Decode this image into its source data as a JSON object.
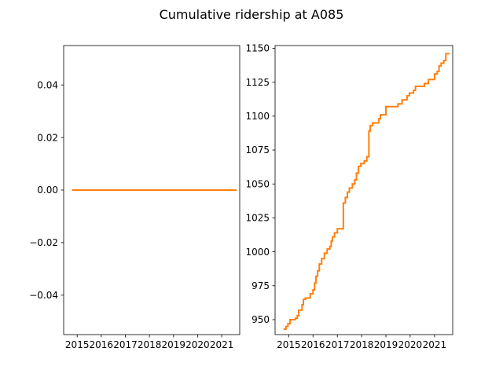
{
  "figure": {
    "suptitle": "Cumulative ridership at A085"
  },
  "chart_data": [
    {
      "type": "line",
      "title": "",
      "xlabel": "",
      "ylabel": "",
      "x_ticks": [
        "2015",
        "2016",
        "2017",
        "2018",
        "2019",
        "2020",
        "2021"
      ],
      "y_ticks": [
        "−0.04",
        "−0.02",
        "0.00",
        "0.02",
        "0.04"
      ],
      "ylim": [
        -0.055,
        0.055
      ],
      "xlim": [
        "2014-06-10",
        "2021-10-01"
      ],
      "grid": false,
      "series": [
        {
          "color": "#ff7f0e",
          "points": [
            [
              "2014-10-15",
              0
            ],
            [
              "2021-08-15",
              0
            ]
          ]
        }
      ]
    },
    {
      "type": "line",
      "title": "",
      "xlabel": "",
      "ylabel": "",
      "x_ticks": [
        "2015",
        "2016",
        "2017",
        "2018",
        "2019",
        "2020",
        "2021"
      ],
      "y_ticks": [
        "950",
        "975",
        "1000",
        "1025",
        "1050",
        "1075",
        "1100",
        "1125",
        "1150"
      ],
      "ylim": [
        939,
        1152
      ],
      "xlim": [
        "2014-06-10",
        "2021-10-01"
      ],
      "grid": false,
      "series": [
        {
          "color": "#ff7f0e",
          "points": [
            [
              "2014-10-15",
              943
            ],
            [
              "2014-11-20",
              943
            ],
            [
              "2014-11-20",
              945
            ],
            [
              "2014-12-20",
              945
            ],
            [
              "2014-12-20",
              947
            ],
            [
              "2015-01-20",
              947
            ],
            [
              "2015-01-20",
              950
            ],
            [
              "2015-04-10",
              950
            ],
            [
              "2015-04-10",
              951
            ],
            [
              "2015-05-10",
              951
            ],
            [
              "2015-05-10",
              953
            ],
            [
              "2015-06-01",
              953
            ],
            [
              "2015-06-01",
              957
            ],
            [
              "2015-07-20",
              957
            ],
            [
              "2015-07-20",
              961
            ],
            [
              "2015-08-10",
              961
            ],
            [
              "2015-08-10",
              965
            ],
            [
              "2015-09-10",
              965
            ],
            [
              "2015-09-10",
              966
            ],
            [
              "2015-11-20",
              966
            ],
            [
              "2015-11-20",
              969
            ],
            [
              "2016-01-01",
              969
            ],
            [
              "2016-01-01",
              972
            ],
            [
              "2016-01-25",
              972
            ],
            [
              "2016-01-25",
              977
            ],
            [
              "2016-02-15",
              977
            ],
            [
              "2016-02-15",
              982
            ],
            [
              "2016-03-10",
              982
            ],
            [
              "2016-03-10",
              986
            ],
            [
              "2016-04-05",
              986
            ],
            [
              "2016-04-05",
              991
            ],
            [
              "2016-05-10",
              991
            ],
            [
              "2016-05-10",
              995
            ],
            [
              "2016-06-20",
              995
            ],
            [
              "2016-06-20",
              999
            ],
            [
              "2016-08-01",
              999
            ],
            [
              "2016-08-01",
              1002
            ],
            [
              "2016-09-10",
              1002
            ],
            [
              "2016-09-10",
              1004
            ],
            [
              "2016-10-01",
              1004
            ],
            [
              "2016-10-01",
              1008
            ],
            [
              "2016-10-20",
              1008
            ],
            [
              "2016-10-20",
              1011
            ],
            [
              "2016-11-20",
              1011
            ],
            [
              "2016-11-20",
              1014
            ],
            [
              "2017-01-01",
              1014
            ],
            [
              "2017-01-01",
              1017
            ],
            [
              "2017-04-01",
              1017
            ],
            [
              "2017-04-01",
              1036
            ],
            [
              "2017-05-01",
              1036
            ],
            [
              "2017-05-01",
              1040
            ],
            [
              "2017-06-01",
              1040
            ],
            [
              "2017-06-01",
              1044
            ],
            [
              "2017-07-01",
              1044
            ],
            [
              "2017-07-01",
              1047
            ],
            [
              "2017-08-15",
              1047
            ],
            [
              "2017-08-15",
              1050
            ],
            [
              "2017-09-20",
              1050
            ],
            [
              "2017-09-20",
              1053
            ],
            [
              "2017-10-15",
              1053
            ],
            [
              "2017-10-15",
              1058
            ],
            [
              "2017-11-15",
              1058
            ],
            [
              "2017-11-15",
              1063
            ],
            [
              "2017-12-20",
              1063
            ],
            [
              "2017-12-20",
              1065
            ],
            [
              "2018-02-10",
              1065
            ],
            [
              "2018-02-10",
              1067
            ],
            [
              "2018-03-20",
              1067
            ],
            [
              "2018-03-20",
              1070
            ],
            [
              "2018-04-20",
              1070
            ],
            [
              "2018-04-20",
              1089
            ],
            [
              "2018-05-10",
              1089
            ],
            [
              "2018-05-10",
              1093
            ],
            [
              "2018-06-15",
              1093
            ],
            [
              "2018-06-15",
              1095
            ],
            [
              "2018-09-15",
              1095
            ],
            [
              "2018-09-15",
              1098
            ],
            [
              "2018-10-10",
              1098
            ],
            [
              "2018-10-10",
              1101
            ],
            [
              "2019-01-01",
              1101
            ],
            [
              "2019-01-01",
              1107
            ],
            [
              "2019-07-01",
              1107
            ],
            [
              "2019-07-01",
              1109
            ],
            [
              "2019-09-01",
              1109
            ],
            [
              "2019-09-01",
              1112
            ],
            [
              "2019-11-15",
              1112
            ],
            [
              "2019-11-15",
              1115
            ],
            [
              "2019-12-20",
              1115
            ],
            [
              "2019-12-20",
              1117
            ],
            [
              "2020-02-20",
              1117
            ],
            [
              "2020-02-20",
              1119
            ],
            [
              "2020-03-20",
              1119
            ],
            [
              "2020-03-20",
              1122
            ],
            [
              "2020-08-01",
              1122
            ],
            [
              "2020-08-01",
              1124
            ],
            [
              "2020-10-01",
              1124
            ],
            [
              "2020-10-01",
              1127
            ],
            [
              "2021-01-01",
              1127
            ],
            [
              "2021-01-01",
              1131
            ],
            [
              "2021-02-10",
              1131
            ],
            [
              "2021-02-10",
              1133
            ],
            [
              "2021-03-10",
              1133
            ],
            [
              "2021-03-10",
              1137
            ],
            [
              "2021-04-10",
              1137
            ],
            [
              "2021-04-10",
              1139
            ],
            [
              "2021-05-20",
              1139
            ],
            [
              "2021-05-20",
              1141
            ],
            [
              "2021-06-20",
              1141
            ],
            [
              "2021-06-20",
              1146
            ],
            [
              "2021-08-15",
              1146
            ]
          ]
        }
      ]
    }
  ]
}
